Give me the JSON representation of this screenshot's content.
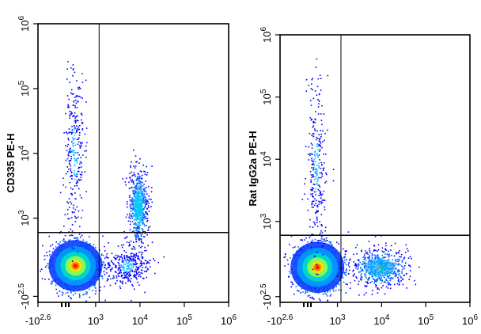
{
  "chart_data": [
    {
      "type": "scatter",
      "subtype": "flow-cytometry-density-dot-plot",
      "ylabel": "CD335 PE-H",
      "xlabel": "",
      "x_ticks": [
        {
          "base": "-10",
          "exp": "2.6"
        },
        {
          "base": "10",
          "exp": "3"
        },
        {
          "base": "10",
          "exp": "4"
        },
        {
          "base": "10",
          "exp": "5"
        },
        {
          "base": "10",
          "exp": "6"
        }
      ],
      "y_ticks": [
        {
          "base": "-10",
          "exp": "2.5"
        },
        {
          "base": "10",
          "exp": "3"
        },
        {
          "base": "10",
          "exp": "4"
        },
        {
          "base": "10",
          "exp": "5"
        },
        {
          "base": "10",
          "exp": "6"
        }
      ],
      "scale": "biexponential",
      "quadrant_gate": {
        "x": 1200,
        "y": 600
      },
      "populations": [
        {
          "x_center": 350,
          "y_center": 100,
          "relative_density": "highest"
        },
        {
          "x_center": 9000,
          "y_center": 1500,
          "relative_density": "medium"
        },
        {
          "x_center": 5000,
          "y_center": 100,
          "relative_density": "low"
        },
        {
          "x_center": 320,
          "y_center": 10000,
          "relative_density": "sparse"
        }
      ],
      "color_scale": [
        "#0000ff",
        "#00bfff",
        "#00ff80",
        "#ffff00",
        "#ff8000",
        "#ff0000"
      ]
    },
    {
      "type": "scatter",
      "subtype": "flow-cytometry-density-dot-plot",
      "ylabel": "Rat IgG2a PE-H",
      "xlabel": "",
      "x_ticks": [
        {
          "base": "-10",
          "exp": "2.6"
        },
        {
          "base": "10",
          "exp": "3"
        },
        {
          "base": "10",
          "exp": "4"
        },
        {
          "base": "10",
          "exp": "5"
        },
        {
          "base": "10",
          "exp": "6"
        }
      ],
      "y_ticks": [
        {
          "base": "-10",
          "exp": "2.5"
        },
        {
          "base": "10",
          "exp": "3"
        },
        {
          "base": "10",
          "exp": "4"
        },
        {
          "base": "10",
          "exp": "5"
        },
        {
          "base": "10",
          "exp": "6"
        }
      ],
      "scale": "biexponential",
      "quadrant_gate": {
        "x": 1200,
        "y": 600
      },
      "populations": [
        {
          "x_center": 350,
          "y_center": 100,
          "relative_density": "highest"
        },
        {
          "x_center": 9000,
          "y_center": 100,
          "relative_density": "medium"
        },
        {
          "x_center": 320,
          "y_center": 8000,
          "relative_density": "sparse"
        }
      ],
      "color_scale": [
        "#0000ff",
        "#00bfff",
        "#00ff80",
        "#ffff00",
        "#ff8000",
        "#ff0000"
      ]
    }
  ]
}
